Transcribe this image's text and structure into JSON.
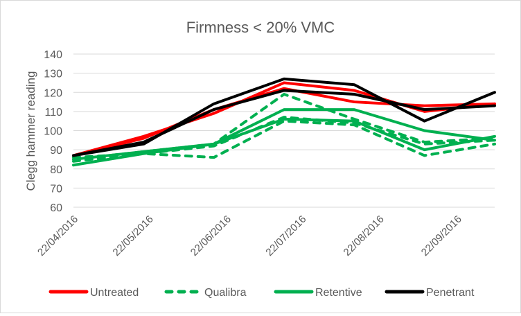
{
  "chart_data": {
    "type": "line",
    "title": "Firmness < 20% VMC",
    "xlabel": "",
    "ylabel": "Clegg hammer reading",
    "ylim": [
      60,
      140
    ],
    "yticks": [
      60,
      70,
      80,
      90,
      100,
      110,
      120,
      130,
      140
    ],
    "grid": true,
    "legend_position": "bottom",
    "x_axis_min": "2016-04-15",
    "x_axis_max": "2016-09-30",
    "xtick_labels": [
      {
        "label": "22/04/2016",
        "date": "2016-04-22"
      },
      {
        "label": "22/05/2016",
        "date": "2016-05-22"
      },
      {
        "label": "22/06/2016",
        "date": "2016-06-22"
      },
      {
        "label": "22/07/2016",
        "date": "2016-07-22"
      },
      {
        "label": "22/08/2016",
        "date": "2016-08-22"
      },
      {
        "label": "22/09/2016",
        "date": "2016-09-22"
      }
    ],
    "x": [
      "2016-04-15",
      "2016-05-13",
      "2016-06-10",
      "2016-07-08",
      "2016-08-05",
      "2016-09-02",
      "2016-09-30"
    ],
    "legend": [
      {
        "name": "Untreated",
        "color": "#ff0000",
        "dash": false
      },
      {
        "name": "Qualibra",
        "color": "#00b050",
        "dash": true
      },
      {
        "name": "Retentive",
        "color": "#00b050",
        "dash": false
      },
      {
        "name": "Penetrant",
        "color": "#000000",
        "dash": false
      }
    ],
    "series": [
      {
        "name": "Qualibra",
        "color": "#00b050",
        "dash": true,
        "values": [
          86,
          88,
          86,
          105,
          103,
          87,
          93
        ]
      },
      {
        "name": "Qualibra",
        "color": "#00b050",
        "dash": true,
        "values": [
          84,
          88,
          92,
          107,
          104,
          93,
          95
        ]
      },
      {
        "name": "Qualibra",
        "color": "#00b050",
        "dash": true,
        "values": [
          85,
          89,
          93,
          119,
          106,
          94,
          96
        ]
      },
      {
        "name": "Retentive",
        "color": "#00b050",
        "dash": false,
        "values": [
          82,
          88,
          93,
          106,
          105,
          90,
          97
        ]
      },
      {
        "name": "Retentive",
        "color": "#00b050",
        "dash": false,
        "values": [
          85,
          89,
          93,
          111,
          111,
          100,
          95
        ]
      },
      {
        "name": "Untreated",
        "color": "#ff0000",
        "dash": false,
        "values": [
          87,
          97,
          109,
          125,
          121,
          110,
          114
        ]
      },
      {
        "name": "Untreated",
        "color": "#ff0000",
        "dash": false,
        "values": [
          87,
          96,
          111,
          122,
          115,
          113,
          114
        ]
      },
      {
        "name": "Penetrant",
        "color": "#000000",
        "dash": false,
        "values": [
          87,
          93,
          114,
          127,
          124,
          105,
          120
        ]
      },
      {
        "name": "Penetrant",
        "color": "#000000",
        "dash": false,
        "values": [
          87,
          94,
          111,
          121,
          119,
          111,
          113
        ]
      }
    ]
  }
}
